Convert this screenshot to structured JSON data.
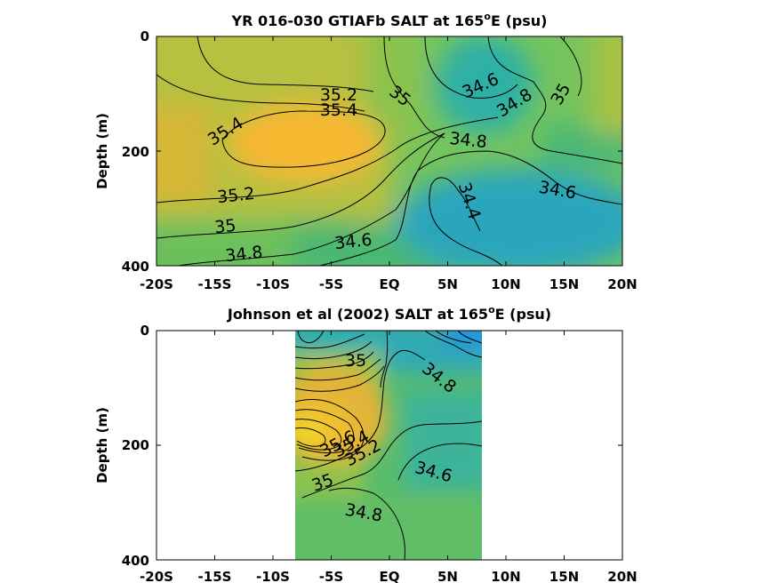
{
  "chart_data": [
    {
      "type": "heatmap",
      "subtype": "filled-contour",
      "title_main": "YR 016-030 GTIAFb SALT at 165",
      "title_sup": "o",
      "title_end": "E (psu)",
      "xlabel": "",
      "ylabel": "Depth (m)",
      "x_ticks": [
        "-20S",
        "-15S",
        "-10S",
        "-5S",
        "EQ",
        "5N",
        "10N",
        "15N",
        "20N"
      ],
      "y_ticks": [
        "0",
        "200",
        "400"
      ],
      "xlim": [
        -20,
        20
      ],
      "ylim": [
        0,
        400
      ],
      "y_reversed": true,
      "data_lat_range": [
        -20,
        20
      ],
      "colormap": "parula",
      "contour_labels": [
        {
          "text": "35.2",
          "x": -5,
          "y": 100
        },
        {
          "text": "35.4",
          "x": -5,
          "y": 125
        },
        {
          "text": "35.4",
          "x": -15,
          "y": 175
        },
        {
          "text": "35",
          "x": 0.5,
          "y": 105
        },
        {
          "text": "34.6",
          "x": 6.5,
          "y": 85
        },
        {
          "text": "34.8",
          "x": 9.5,
          "y": 115
        },
        {
          "text": "35",
          "x": 14,
          "y": 100
        },
        {
          "text": "34.8",
          "x": 4,
          "y": 178
        },
        {
          "text": "34.4",
          "x": 4.5,
          "y": 285
        },
        {
          "text": "34.6",
          "x": 13,
          "y": 265
        },
        {
          "text": "35.2",
          "x": -14,
          "y": 275
        },
        {
          "text": "35",
          "x": -15.5,
          "y": 330
        },
        {
          "text": "34.8",
          "x": -14.5,
          "y": 380
        },
        {
          "text": "34.6",
          "x": -6,
          "y": 355
        }
      ]
    },
    {
      "type": "heatmap",
      "subtype": "filled-contour",
      "title_main": "Johnson et al (2002) SALT at 165",
      "title_sup": "o",
      "title_end": "E (psu)",
      "xlabel": "",
      "ylabel": "Depth (m)",
      "x_ticks": [
        "-20S",
        "-15S",
        "-10S",
        "-5S",
        "EQ",
        "5N",
        "10N",
        "15N",
        "20N"
      ],
      "y_ticks": [
        "0",
        "200",
        "400"
      ],
      "xlim": [
        -20,
        20
      ],
      "ylim": [
        0,
        400
      ],
      "y_reversed": true,
      "data_lat_range": [
        -8,
        8
      ],
      "colormap": "parula",
      "contour_labels": [
        {
          "text": "35",
          "x": -2.8,
          "y": 55
        },
        {
          "text": "34.8",
          "x": 4.2,
          "y": 85
        },
        {
          "text": "35.6",
          "x": -4.5,
          "y": 200
        },
        {
          "text": "35.4",
          "x": -3,
          "y": 195
        },
        {
          "text": "35.2",
          "x": -2,
          "y": 210
        },
        {
          "text": "34.6",
          "x": 3.8,
          "y": 250
        },
        {
          "text": "35",
          "x": -5.8,
          "y": 265
        },
        {
          "text": "34.8",
          "x": -2.2,
          "y": 325
        }
      ]
    }
  ]
}
